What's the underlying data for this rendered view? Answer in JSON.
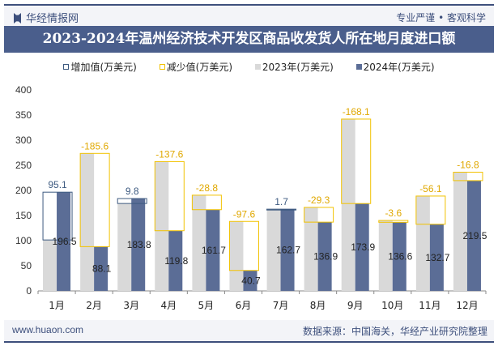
{
  "header": {
    "logo": "华经情报网",
    "slogan": "专业严谨 • 客观科学"
  },
  "footer": {
    "site": "www.huaon.com",
    "source": "数据来源：中国海关，华经产业研究院整理"
  },
  "colors": {
    "increase": "#3d5a80",
    "decrease": "#f2c200",
    "y2023": "#d9d9d9",
    "y2024": "#5b6d96"
  },
  "chart_data": {
    "type": "bar",
    "title": "2023-2024年温州经济技术开发区商品收发货人所在地月度进口额",
    "legend": [
      "增加值(万美元)",
      "减少值(万美元)",
      "2023年(万美元)",
      "2024年(万美元)"
    ],
    "legend_position": "top",
    "categories": [
      "1月",
      "2月",
      "3月",
      "4月",
      "5月",
      "6月",
      "7月",
      "8月",
      "9月",
      "10月",
      "11月",
      "12月"
    ],
    "series": [
      {
        "name": "2023年(万美元)",
        "values": [
          101.4,
          273.7,
          174.0,
          257.4,
          190.5,
          138.3,
          161.0,
          166.2,
          342.0,
          140.2,
          188.8,
          236.3
        ]
      },
      {
        "name": "2024年(万美元)",
        "values": [
          196.5,
          88.1,
          183.8,
          119.8,
          161.7,
          40.7,
          162.7,
          136.9,
          173.9,
          136.6,
          132.7,
          219.5
        ]
      }
    ],
    "change": [
      95.1,
      -185.6,
      9.8,
      -137.6,
      -28.8,
      -97.6,
      1.7,
      -29.3,
      -168.1,
      -3.6,
      -56.1,
      -16.8
    ],
    "change_labels": [
      "95.1",
      "-185.6",
      "9.8",
      "-137.6",
      "-28.8",
      "-97.6",
      "1.7",
      "-29.3",
      "-168.1",
      "-3.6",
      "-56.1",
      "-16.8"
    ],
    "value_labels": [
      "196.5",
      "88.1",
      "183.8",
      "119.8",
      "161.7",
      "40.7",
      "162.7",
      "136.9",
      "173.9",
      "136.6",
      "132.7",
      "219.5"
    ],
    "yticks": [
      "0",
      "50",
      "100",
      "150",
      "200",
      "250",
      "300",
      "350",
      "400"
    ],
    "ylim": [
      0,
      400
    ]
  }
}
